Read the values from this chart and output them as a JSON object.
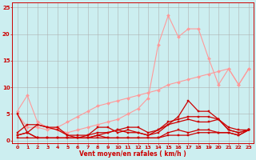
{
  "title": "",
  "xlabel": "Vent moyen/en rafales ( km/h )",
  "ylabel": "",
  "bg_color": "#cceef0",
  "grid_color": "#aadddd",
  "xlim": [
    -0.5,
    23.5
  ],
  "ylim": [
    -0.5,
    26
  ],
  "xticks": [
    0,
    1,
    2,
    3,
    4,
    5,
    6,
    7,
    8,
    9,
    10,
    11,
    12,
    13,
    14,
    15,
    16,
    17,
    18,
    19,
    20,
    21,
    22,
    23
  ],
  "yticks": [
    0,
    5,
    10,
    15,
    20,
    25
  ],
  "series": [
    {
      "x": [
        0,
        1,
        2,
        3,
        4,
        5,
        6,
        7,
        8,
        9,
        10,
        11,
        12,
        13,
        14,
        15,
        16,
        17,
        18,
        19,
        20,
        21,
        22,
        23
      ],
      "y": [
        5.5,
        8.5,
        3.5,
        2.5,
        2.0,
        1.5,
        2.0,
        2.5,
        3.0,
        3.5,
        4.0,
        5.0,
        6.0,
        8.0,
        18.0,
        23.5,
        19.5,
        21.0,
        21.0,
        15.5,
        10.5,
        13.5,
        10.5,
        13.5
      ],
      "color": "#ff9999",
      "linewidth": 0.8,
      "marker": "D",
      "markersize": 2.0,
      "alpha": 1.0
    },
    {
      "x": [
        0,
        1,
        2,
        3,
        4,
        5,
        6,
        7,
        8,
        9,
        10,
        11,
        12,
        13,
        14,
        15,
        16,
        17,
        18,
        19,
        20,
        21,
        22,
        23
      ],
      "y": [
        5.0,
        2.5,
        2.5,
        2.0,
        2.5,
        3.5,
        4.5,
        5.5,
        6.5,
        7.0,
        7.5,
        8.0,
        8.5,
        9.0,
        9.5,
        10.5,
        11.0,
        11.5,
        12.0,
        12.5,
        13.0,
        13.5,
        10.5,
        13.5
      ],
      "color": "#ff9999",
      "linewidth": 0.8,
      "marker": "D",
      "markersize": 2.0,
      "alpha": 1.0
    },
    {
      "x": [
        0,
        1,
        2,
        3,
        4,
        5,
        6,
        7,
        8,
        9,
        10,
        11,
        12,
        13,
        14,
        15,
        16,
        17,
        18,
        19,
        20,
        21,
        22,
        23
      ],
      "y": [
        5.0,
        1.5,
        3.0,
        2.5,
        2.0,
        1.0,
        1.0,
        1.0,
        2.5,
        2.5,
        1.5,
        2.0,
        1.5,
        1.0,
        1.5,
        3.0,
        4.5,
        7.5,
        5.5,
        5.5,
        4.0,
        2.0,
        1.5,
        2.0
      ],
      "color": "#cc0000",
      "linewidth": 0.9,
      "marker": "s",
      "markersize": 2.0,
      "alpha": 1.0
    },
    {
      "x": [
        0,
        1,
        2,
        3,
        4,
        5,
        6,
        7,
        8,
        9,
        10,
        11,
        12,
        13,
        14,
        15,
        16,
        17,
        18,
        19,
        20,
        21,
        22,
        23
      ],
      "y": [
        1.5,
        3.0,
        3.0,
        2.5,
        2.5,
        1.0,
        0.5,
        1.0,
        1.5,
        1.5,
        2.0,
        1.5,
        1.5,
        1.0,
        2.0,
        3.5,
        4.0,
        4.5,
        4.5,
        4.5,
        4.0,
        2.5,
        2.0,
        2.0
      ],
      "color": "#cc0000",
      "linewidth": 0.9,
      "marker": "s",
      "markersize": 2.0,
      "alpha": 1.0
    },
    {
      "x": [
        0,
        1,
        2,
        3,
        4,
        5,
        6,
        7,
        8,
        9,
        10,
        11,
        12,
        13,
        14,
        15,
        16,
        17,
        18,
        19,
        20,
        21,
        22,
        23
      ],
      "y": [
        1.0,
        1.5,
        0.5,
        0.5,
        0.5,
        0.5,
        0.5,
        0.5,
        1.0,
        1.5,
        2.0,
        2.5,
        2.5,
        1.5,
        2.0,
        3.0,
        3.5,
        4.0,
        3.5,
        3.5,
        4.0,
        2.0,
        1.5,
        2.0
      ],
      "color": "#cc0000",
      "linewidth": 0.9,
      "marker": "s",
      "markersize": 2.0,
      "alpha": 1.0
    },
    {
      "x": [
        0,
        1,
        2,
        3,
        4,
        5,
        6,
        7,
        8,
        9,
        10,
        11,
        12,
        13,
        14,
        15,
        16,
        17,
        18,
        19,
        20,
        21,
        22,
        23
      ],
      "y": [
        1.0,
        1.5,
        0.5,
        0.5,
        0.5,
        0.5,
        0.5,
        0.5,
        1.0,
        0.5,
        0.5,
        0.5,
        0.5,
        0.5,
        0.5,
        1.5,
        2.0,
        1.5,
        2.0,
        2.0,
        1.5,
        1.5,
        1.0,
        2.0
      ],
      "color": "#cc0000",
      "linewidth": 0.9,
      "marker": "s",
      "markersize": 2.0,
      "alpha": 1.0
    },
    {
      "x": [
        0,
        1,
        2,
        3,
        4,
        5,
        6,
        7,
        8,
        9,
        10,
        11,
        12,
        13,
        14,
        15,
        16,
        17,
        18,
        19,
        20,
        21,
        22,
        23
      ],
      "y": [
        0.5,
        0.5,
        0.5,
        0.5,
        0.5,
        0.5,
        0.5,
        0.5,
        0.5,
        0.5,
        0.5,
        0.5,
        0.5,
        0.5,
        0.5,
        1.0,
        1.0,
        1.0,
        1.5,
        1.5,
        1.5,
        1.5,
        1.0,
        2.0
      ],
      "color": "#cc0000",
      "linewidth": 0.9,
      "marker": "s",
      "markersize": 2.0,
      "alpha": 1.0
    }
  ]
}
